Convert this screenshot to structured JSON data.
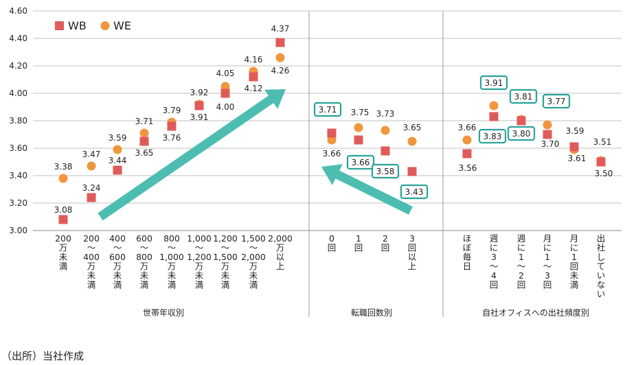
{
  "chart_data": {
    "type": "scatter",
    "yaxis": {
      "min": 3.0,
      "max": 4.6,
      "step": 0.2,
      "ticks": [
        "3.00",
        "3.20",
        "3.40",
        "3.60",
        "3.80",
        "4.00",
        "4.20",
        "4.40",
        "4.60"
      ]
    },
    "legend": {
      "position": "top-left",
      "series": [
        {
          "name": "WB",
          "color": "#e05a5a",
          "marker": "square"
        },
        {
          "name": "WE",
          "color": "#f0963c",
          "marker": "circle"
        }
      ]
    },
    "colors": {
      "arrow": "#4dbdb1",
      "box": "#2aa39a",
      "grid": "#c0c0c0"
    },
    "groups": [
      {
        "label": "世帯年収別",
        "categories": [
          {
            "lines": [
              "200",
              "万",
              "未",
              "満"
            ],
            "wb": 3.08,
            "we": 3.38
          },
          {
            "lines": [
              "200",
              "～",
              "400",
              "万",
              "未",
              "満"
            ],
            "wb": 3.24,
            "we": 3.47
          },
          {
            "lines": [
              "400",
              "～",
              "600",
              "万",
              "未",
              "満"
            ],
            "wb": 3.44,
            "we": 3.59
          },
          {
            "lines": [
              "600",
              "～",
              "800",
              "万",
              "未",
              "満"
            ],
            "wb": 3.65,
            "we": 3.71
          },
          {
            "lines": [
              "800",
              "～",
              "1,000",
              "万",
              "未",
              "満"
            ],
            "wb": 3.76,
            "we": 3.79
          },
          {
            "lines": [
              "1,000",
              "～",
              "1,200",
              "万",
              "未",
              "満"
            ],
            "wb": 3.91,
            "we": 3.92
          },
          {
            "lines": [
              "1,200",
              "～",
              "1,500",
              "万",
              "未",
              "満"
            ],
            "wb": 4.0,
            "we": 4.05
          },
          {
            "lines": [
              "1,500",
              "～",
              "2,000",
              "万",
              "未",
              "満"
            ],
            "wb": 4.12,
            "we": 4.16
          },
          {
            "lines": [
              "2,000",
              "万",
              "以",
              "上"
            ],
            "wb": 4.37,
            "we": 4.26
          }
        ]
      },
      {
        "label": "転職回数別",
        "categories": [
          {
            "lines": [
              "0",
              "回"
            ],
            "wb": 3.71,
            "we": 3.66
          },
          {
            "lines": [
              "1",
              "回"
            ],
            "wb": 3.66,
            "we": 3.75
          },
          {
            "lines": [
              "2",
              "回"
            ],
            "wb": 3.58,
            "we": 3.73
          },
          {
            "lines": [
              "3",
              "回",
              "以",
              "上"
            ],
            "wb": 3.43,
            "we": 3.65
          }
        ]
      },
      {
        "label": "自社オフィスへの出社頻度別",
        "categories": [
          {
            "lines": [
              "ほ",
              "ぼ",
              "毎",
              "日"
            ],
            "wb": 3.56,
            "we": 3.66
          },
          {
            "lines": [
              "週",
              "に",
              "3",
              "～",
              "4",
              "回"
            ],
            "wb": 3.83,
            "we": 3.91
          },
          {
            "lines": [
              "週",
              "に",
              "1",
              "～",
              "2",
              "回"
            ],
            "wb": 3.8,
            "we": 3.81
          },
          {
            "lines": [
              "月",
              "に",
              "1",
              "～",
              "3",
              "回"
            ],
            "wb": 3.7,
            "we": 3.77
          },
          {
            "lines": [
              "月",
              "に",
              "1",
              "回",
              "未",
              "満"
            ],
            "wb": 3.61,
            "we": 3.59
          },
          {
            "lines": [
              "出",
              "社",
              "し",
              "て",
              "い",
              "な",
              "い"
            ],
            "wb": 3.5,
            "we": 3.51
          }
        ]
      }
    ],
    "source": "（出所）当社作成"
  }
}
